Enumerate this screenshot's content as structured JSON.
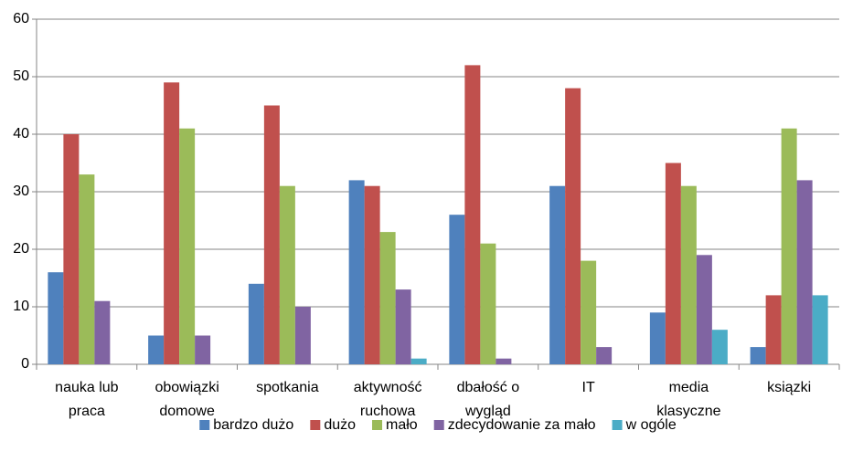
{
  "chart_data": {
    "type": "bar",
    "categories": [
      "nauka lub praca",
      "obowiązki domowe",
      "spotkania",
      "aktywność ruchowa",
      "dbałość o wygląd",
      "IT",
      "media klasyczne",
      "ksiązki"
    ],
    "series": [
      {
        "name": "bardzo dużo",
        "color": "#4f81bd",
        "values": [
          16,
          5,
          14,
          32,
          26,
          31,
          9,
          3
        ]
      },
      {
        "name": "dużo",
        "color": "#c0504d",
        "values": [
          40,
          49,
          45,
          31,
          52,
          48,
          35,
          12
        ]
      },
      {
        "name": "mało",
        "color": "#9bbb59",
        "values": [
          33,
          41,
          31,
          23,
          21,
          18,
          31,
          41
        ]
      },
      {
        "name": "zdecydowanie za mało",
        "color": "#8064a2",
        "values": [
          11,
          5,
          10,
          13,
          1,
          3,
          19,
          32
        ]
      },
      {
        "name": "w ogóle",
        "color": "#4bacc6",
        "values": [
          0,
          0,
          0,
          1,
          0,
          0,
          6,
          12
        ]
      }
    ],
    "ylim": [
      0,
      60
    ],
    "yticks": [
      0,
      10,
      20,
      30,
      40,
      50,
      60
    ],
    "grid": true,
    "legend": "bottom"
  }
}
